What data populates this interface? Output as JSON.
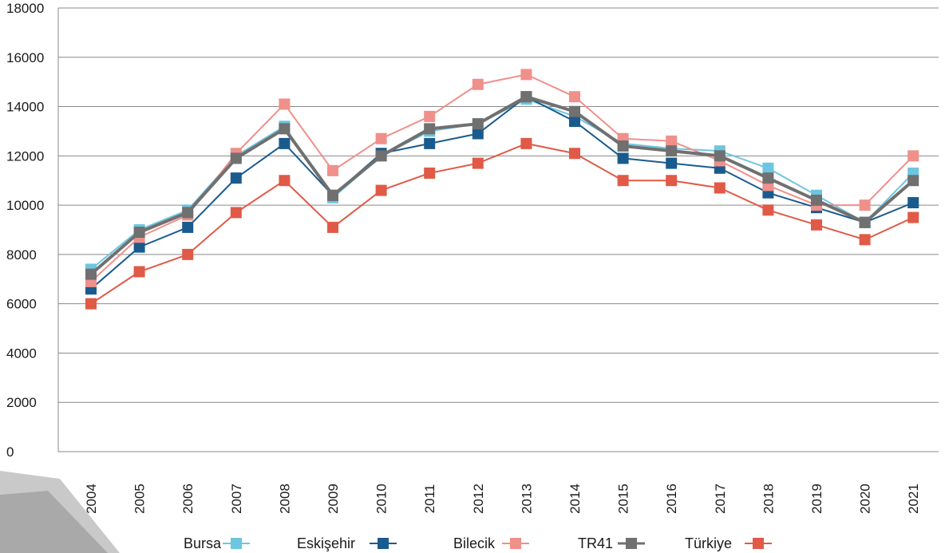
{
  "chart_data": {
    "type": "line",
    "title": "",
    "xlabel": "",
    "ylabel": "",
    "ylim": [
      0,
      18000
    ],
    "yticks": [
      0,
      2000,
      4000,
      6000,
      8000,
      10000,
      12000,
      14000,
      16000,
      18000
    ],
    "grid": true,
    "legend_position": "bottom",
    "categories": [
      "2004",
      "2005",
      "2006",
      "2007",
      "2008",
      "2009",
      "2010",
      "2011",
      "2012",
      "2013",
      "2014",
      "2015",
      "2016",
      "2017",
      "2018",
      "2019",
      "2020",
      "2021"
    ],
    "series": [
      {
        "name": "Bursa",
        "color": "#6dc6e0",
        "values": [
          7400,
          9000,
          9800,
          12000,
          13200,
          10300,
          12000,
          13000,
          13300,
          14300,
          13600,
          12500,
          12300,
          12200,
          11500,
          10400,
          9300,
          11300
        ]
      },
      {
        "name": "Eskişehir",
        "color": "#1a5b8e",
        "values": [
          6600,
          8300,
          9100,
          11100,
          12500,
          10400,
          12100,
          12500,
          12900,
          14400,
          13400,
          11900,
          11700,
          11500,
          10500,
          9900,
          9300,
          10100
        ]
      },
      {
        "name": "Bilecik",
        "color": "#f0908a",
        "values": [
          6900,
          8700,
          9600,
          12100,
          14100,
          11400,
          12700,
          13600,
          14900,
          15300,
          14400,
          12700,
          12600,
          11800,
          10800,
          10000,
          10000,
          12000
        ]
      },
      {
        "name": "TR41",
        "color": "#707070",
        "values": [
          7200,
          8900,
          9700,
          11900,
          13100,
          10400,
          12000,
          13100,
          13300,
          14400,
          13800,
          12400,
          12200,
          12000,
          11100,
          10200,
          9300,
          11000
        ]
      },
      {
        "name": "Türkiye",
        "color": "#e05a47",
        "values": [
          6000,
          7300,
          8000,
          9700,
          11000,
          9100,
          10600,
          11300,
          11700,
          12500,
          12100,
          11000,
          11000,
          10700,
          9800,
          9200,
          8600,
          9500
        ]
      }
    ]
  },
  "legend": {
    "items": [
      {
        "label": "Bursa"
      },
      {
        "label": "Eskişehir"
      },
      {
        "label": "Bilecik"
      },
      {
        "label": "TR41"
      },
      {
        "label": "Türkiye"
      }
    ]
  }
}
